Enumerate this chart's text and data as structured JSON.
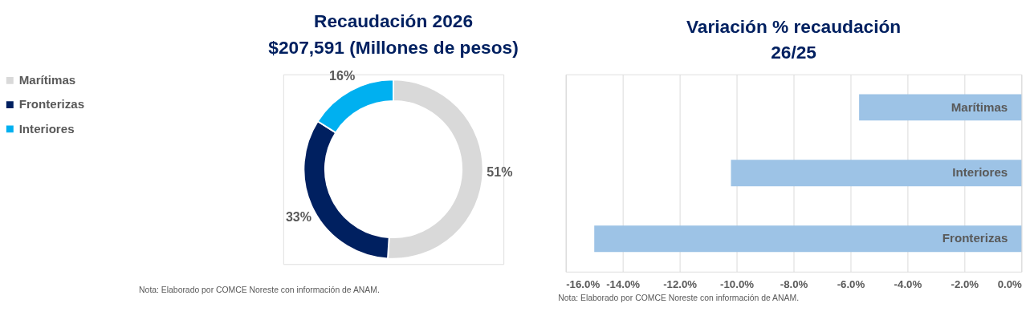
{
  "chart_data": [
    {
      "type": "donut",
      "title": "Recaudación 2026\n$207,591 (Millones de pesos)",
      "categories": [
        "Marítimas",
        "Fronterizas",
        "Interiores"
      ],
      "values": [
        51,
        33,
        16
      ],
      "colors": [
        "#d9d9d9",
        "#002060",
        "#00b0f0"
      ],
      "value_labels": [
        "51%",
        "33%",
        "16%"
      ],
      "legend": "left",
      "annotations": [
        "Nota: Elaborado por COMCE Noreste con información de ANAM."
      ]
    },
    {
      "type": "bar",
      "orientation": "horizontal",
      "title": "Variación % recaudación\n26/25",
      "categories": [
        "Marítimas",
        "Interiores",
        "Fronterizas"
      ],
      "values": [
        -5.7,
        -10.2,
        -15.0
      ],
      "color": "#9dc3e6",
      "xlim": [
        -16,
        0
      ],
      "xticks": [
        {
          "value": -16,
          "label": "-16.0%"
        },
        {
          "value": -14,
          "label": "-14.0%"
        },
        {
          "value": -12,
          "label": "-12.0%"
        },
        {
          "value": -10,
          "label": "-10.0%"
        },
        {
          "value": -8,
          "label": "-8.0%"
        },
        {
          "value": -6,
          "label": "-6.0%"
        },
        {
          "value": -4,
          "label": "-4.0%"
        },
        {
          "value": -2,
          "label": "-2.0%"
        },
        {
          "value": 0,
          "label": "0.0%"
        }
      ],
      "grid": "x",
      "annotations": [
        "Nota: Elaborado por COMCE Noreste con información de ANAM."
      ]
    }
  ]
}
